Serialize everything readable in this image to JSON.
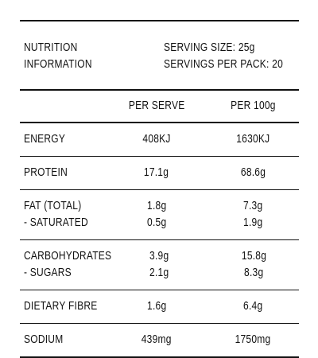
{
  "header": {
    "title": [
      "NUTRITION",
      "INFORMATION"
    ],
    "serving": [
      "SERVING SIZE: 25g",
      "SERVINGS PER PACK: 20"
    ]
  },
  "table": {
    "columns": [
      "PER SERVE",
      "PER 100g"
    ],
    "rows": [
      {
        "labels": [
          "ENERGY"
        ],
        "per_serve": [
          "408KJ"
        ],
        "per_100g": [
          "1630KJ"
        ]
      },
      {
        "labels": [
          "PROTEIN"
        ],
        "per_serve": [
          "17.1g"
        ],
        "per_100g": [
          "68.6g"
        ]
      },
      {
        "labels": [
          "FAT (TOTAL)",
          "- SATURATED"
        ],
        "per_serve": [
          "1.8g",
          "0.5g"
        ],
        "per_100g": [
          "7.3g",
          "1.9g"
        ]
      },
      {
        "labels": [
          "CARBOHYDRATES",
          "- SUGARS"
        ],
        "per_serve": [
          "3.9g",
          "2.1g"
        ],
        "per_100g": [
          "15.8g",
          "8.3g"
        ]
      },
      {
        "labels": [
          "DIETARY FIBRE"
        ],
        "per_serve": [
          "1.6g"
        ],
        "per_100g": [
          "6.4g"
        ]
      },
      {
        "labels": [
          "SODIUM"
        ],
        "per_serve": [
          "439mg"
        ],
        "per_100g": [
          "1750mg"
        ]
      }
    ]
  }
}
